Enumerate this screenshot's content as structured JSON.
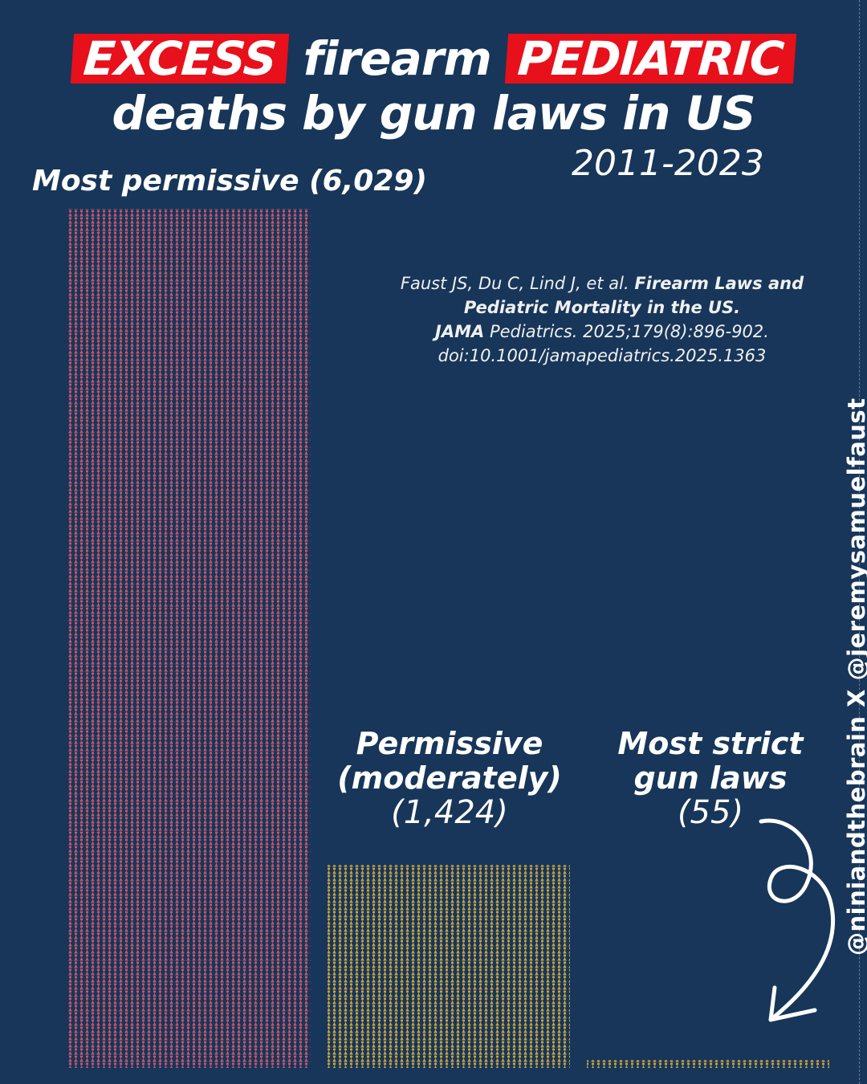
{
  "title": {
    "line1_excess": "EXCESS",
    "line1_mid": "firearm",
    "line1_pediatric": "PEDIATRIC",
    "line2": "deaths by gun laws in US",
    "years": "2011-2023"
  },
  "citation": {
    "authors": "Faust JS, Du C, Lind J, et al.",
    "title": "Firearm Laws and Pediatric Mortality in the US.",
    "journal_bold": "JAMA",
    "journal_rest": "Pediatrics. 2025;179(8):896-902.",
    "doi": "doi:10.1001/jamapediatrics.2025.1363"
  },
  "credit": "@niniandthebrain X @jeremysamuelfaust",
  "labels": {
    "most_permissive": "Most permissive (6,029)",
    "permissive_l1": "Permissive",
    "permissive_l2": "(moderately)",
    "permissive_n": "(1,424)",
    "strict_l1": "Most strict",
    "strict_l2": "gun laws",
    "strict_n": "(55)"
  },
  "colors": {
    "background": "#173659",
    "highlight": "#e8101b",
    "most_permissive": "#c9566b",
    "permissive": "#c9a23f",
    "strict": "#c9a23f"
  },
  "chart_data": {
    "type": "bar",
    "categories": [
      "Most permissive",
      "Permissive (moderately)",
      "Most strict gun laws"
    ],
    "values": [
      6029,
      1424,
      55
    ],
    "ylim": [
      0,
      6029
    ]
  }
}
